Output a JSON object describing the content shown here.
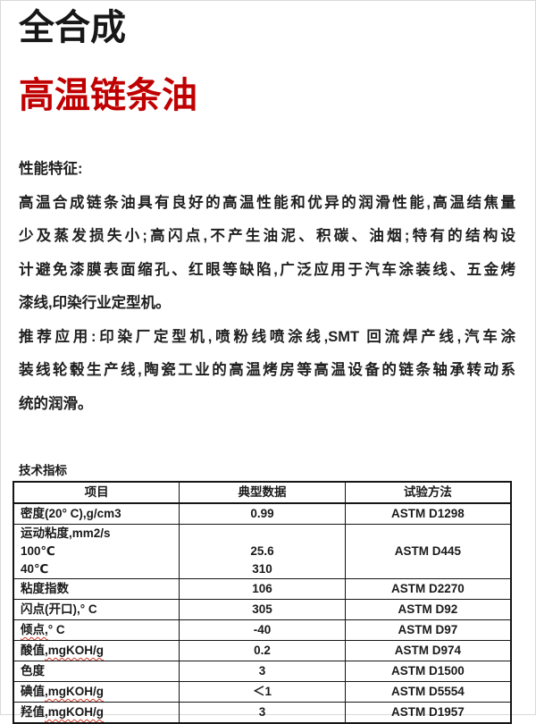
{
  "colors": {
    "title_red": "#c00000",
    "squiggle_red": "#cc3b2b"
  },
  "titles": {
    "product_type": "全合成",
    "product_name": "高温链条油"
  },
  "performance": {
    "heading": "性能特征:",
    "lines": [
      "高温合成链条油具有良好的高温性能和优异的润滑性能,高温结焦量",
      "少及蒸发损失小;高闪点,不产生油泥、积碳、油烟;特有的结构设",
      "计避免漆膜表面缩孔、红眼等缺陷,广泛应用于汽车涂装线、五金烤",
      "漆线,印染行业定型机。"
    ]
  },
  "application": {
    "lines": [
      "推荐应用:印染厂定型机,喷粉线喷涂线,SMT 回流焊产线,汽车涂",
      "装线轮毂生产线,陶瓷工业的高温烤房等高温设备的链条轴承转动系",
      "统的润滑。"
    ]
  },
  "specs": {
    "caption": "技术指标",
    "columns": [
      "项目",
      "典型数据",
      "试验方法"
    ],
    "density": {
      "item": "密度(20° C),g/cm3",
      "value": "0.99",
      "method": "ASTM D1298"
    },
    "viscosity": {
      "label": "运动粘度,mm2/s",
      "temp_100": "100℃",
      "value_100": "25.6",
      "temp_40": "40℃",
      "value_40": "310",
      "method": "ASTM D445"
    },
    "rows": [
      {
        "pre": "粘度指数",
        "sq": "",
        "post": "",
        "value": "106",
        "method": "ASTM D2270"
      },
      {
        "pre": "闪点(开口),",
        "sq": "",
        "post": "° C",
        "value": "305",
        "method": "ASTM D92"
      },
      {
        "pre": "",
        "sq": "倾点,",
        "post": "° C",
        "value": "-40",
        "method": "ASTM D97"
      },
      {
        "pre": "酸值",
        "sq": ",mgKOH/g",
        "post": "",
        "value": "0.2",
        "method": "ASTM D974"
      },
      {
        "pre": "色度",
        "sq": "",
        "post": "",
        "value": "3",
        "method": "ASTM D1500"
      },
      {
        "pre": "碘值",
        "sq": ",mgKOH/g",
        "post": "",
        "value": "＜1",
        "method": "ASTM D5554"
      },
      {
        "pre": "羟值",
        "sq": ",mgKOH/g",
        "post": "",
        "value": "3",
        "method": "ASTM D1957"
      }
    ]
  }
}
